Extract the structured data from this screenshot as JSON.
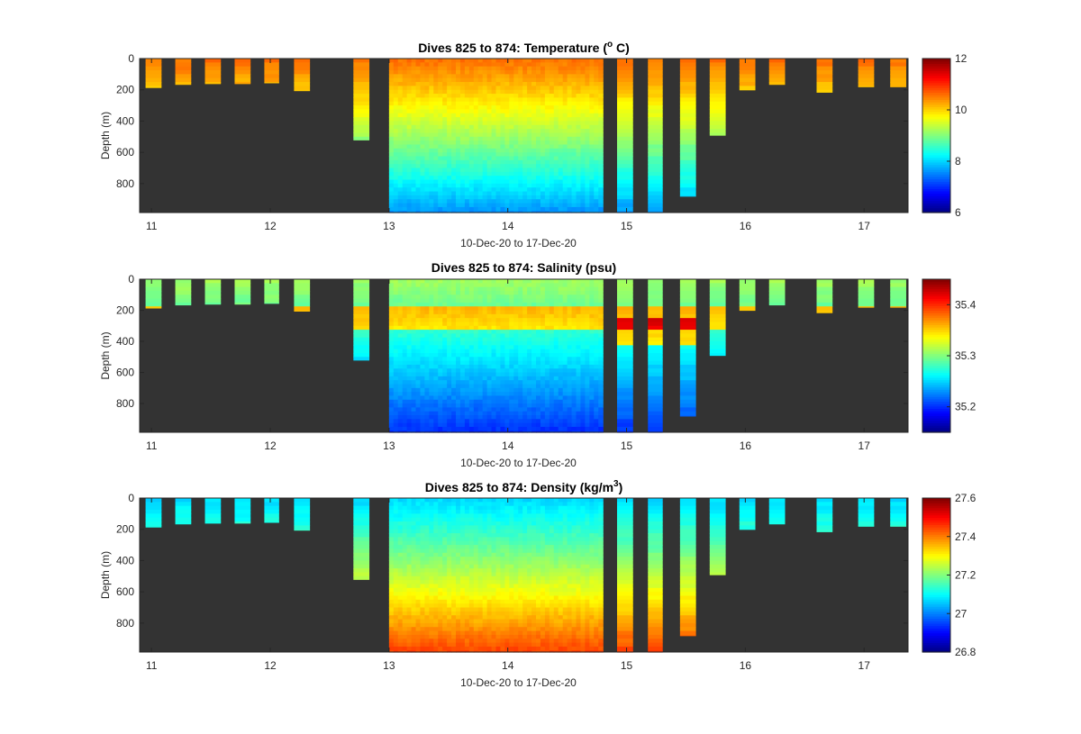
{
  "chart_data": [
    {
      "type": "heatmap",
      "title": "Dives 825 to 874: Temperature (",
      "title_sup": "o",
      "title_tail": " C)",
      "xlabel": "10-Dec-20 to 17-Dec-20",
      "ylabel": "Depth (m)",
      "xlim": [
        10.9,
        17.37
      ],
      "ylim": [
        0,
        985
      ],
      "xticks": [
        "11",
        "12",
        "13",
        "14",
        "15",
        "16",
        "17"
      ],
      "yticks": [
        "0",
        "200",
        "400",
        "600",
        "800"
      ],
      "clim": [
        6,
        12
      ],
      "cticks": [
        "6",
        "8",
        "10",
        "12"
      ],
      "surface_value": 10.6,
      "deep_value": 7.6,
      "background_color": "#333333",
      "colormap": "jet"
    },
    {
      "type": "heatmap",
      "title": "Dives 825 to 874: Salinity (psu)",
      "title_sup": "",
      "title_tail": "",
      "xlabel": "10-Dec-20 to 17-Dec-20",
      "ylabel": "Depth (m)",
      "xlim": [
        10.9,
        17.37
      ],
      "ylim": [
        0,
        985
      ],
      "xticks": [
        "11",
        "12",
        "13",
        "14",
        "15",
        "16",
        "17"
      ],
      "yticks": [
        "0",
        "200",
        "400",
        "600",
        "800"
      ],
      "clim": [
        35.15,
        35.45
      ],
      "cticks": [
        "35.2",
        "35.3",
        "35.4"
      ],
      "surface_value": 35.31,
      "deep_value": 35.2,
      "background_color": "#333333",
      "colormap": "jet"
    },
    {
      "type": "heatmap",
      "title": "Dives 825 to 874: Density (kg/m",
      "title_sup": "3",
      "title_tail": ")",
      "xlabel": "10-Dec-20 to 17-Dec-20",
      "ylabel": "Depth (m)",
      "xlim": [
        10.9,
        17.37
      ],
      "ylim": [
        0,
        985
      ],
      "xticks": [
        "11",
        "12",
        "13",
        "14",
        "15",
        "16",
        "17"
      ],
      "yticks": [
        "0",
        "200",
        "400",
        "600",
        "800"
      ],
      "clim": [
        26.8,
        27.6
      ],
      "cticks": [
        "26.8",
        "27",
        "27.2",
        "27.4",
        "27.6"
      ],
      "surface_value": 27.07,
      "deep_value": 27.45,
      "background_color": "#333333",
      "colormap": "jet"
    }
  ],
  "dives": [
    {
      "start": 10.95,
      "end": 11.08,
      "maxdepth": 185
    },
    {
      "start": 11.2,
      "end": 11.33,
      "maxdepth": 165
    },
    {
      "start": 11.45,
      "end": 11.58,
      "maxdepth": 160
    },
    {
      "start": 11.7,
      "end": 11.83,
      "maxdepth": 160
    },
    {
      "start": 11.95,
      "end": 12.07,
      "maxdepth": 155
    },
    {
      "start": 12.2,
      "end": 12.33,
      "maxdepth": 205
    },
    {
      "start": 12.7,
      "end": 12.83,
      "maxdepth": 520
    },
    {
      "start": 13.0,
      "end": 14.8,
      "maxdepth": 985,
      "continuous": true
    },
    {
      "start": 14.92,
      "end": 15.05,
      "maxdepth": 985
    },
    {
      "start": 15.18,
      "end": 15.3,
      "maxdepth": 985
    },
    {
      "start": 15.45,
      "end": 15.58,
      "maxdepth": 880
    },
    {
      "start": 15.7,
      "end": 15.83,
      "maxdepth": 490
    },
    {
      "start": 15.95,
      "end": 16.08,
      "maxdepth": 200
    },
    {
      "start": 16.2,
      "end": 16.33,
      "maxdepth": 165
    },
    {
      "start": 16.6,
      "end": 16.73,
      "maxdepth": 215
    },
    {
      "start": 16.95,
      "end": 17.08,
      "maxdepth": 180
    },
    {
      "start": 17.22,
      "end": 17.35,
      "maxdepth": 180
    }
  ]
}
